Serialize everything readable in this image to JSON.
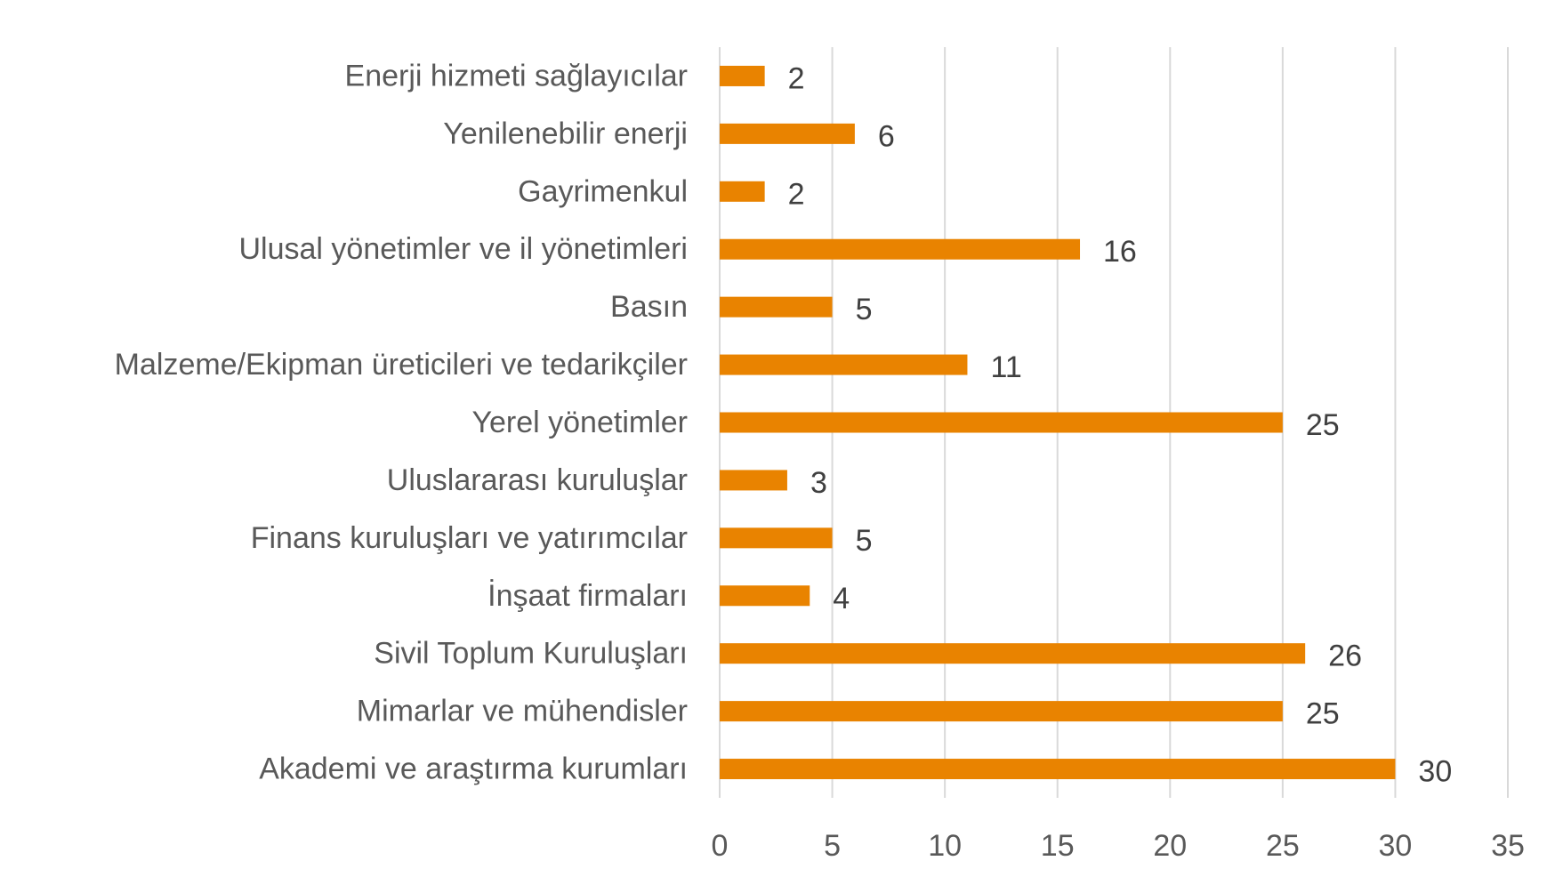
{
  "chart_data": {
    "type": "bar",
    "orientation": "horizontal",
    "title": "",
    "xlabel": "",
    "ylabel": "",
    "categories": [
      "Enerji hizmeti sağlayıcılar",
      "Yenilenebilir enerji",
      "Gayrimenkul",
      "Ulusal yönetimler ve il yönetimleri",
      "Basın",
      "Malzeme/Ekipman üreticileri ve tedarikçiler",
      "Yerel yönetimler",
      "Uluslararası kuruluşlar",
      "Finans kuruluşları ve yatırımcılar",
      "İnşaat firmaları",
      "Sivil Toplum Kuruluşları",
      "Mimarlar ve mühendisler",
      "Akademi ve araştırma kurumları"
    ],
    "values": [
      2,
      6,
      2,
      16,
      5,
      11,
      25,
      3,
      5,
      4,
      26,
      25,
      30
    ],
    "xlim": [
      0,
      35
    ],
    "xticks": [
      0,
      5,
      10,
      15,
      20,
      25,
      30,
      35
    ],
    "grid": "vertical",
    "legend": "none",
    "bar_color": "#e98300",
    "grid_color": "#d9d9d9",
    "label_color": "#595959"
  }
}
